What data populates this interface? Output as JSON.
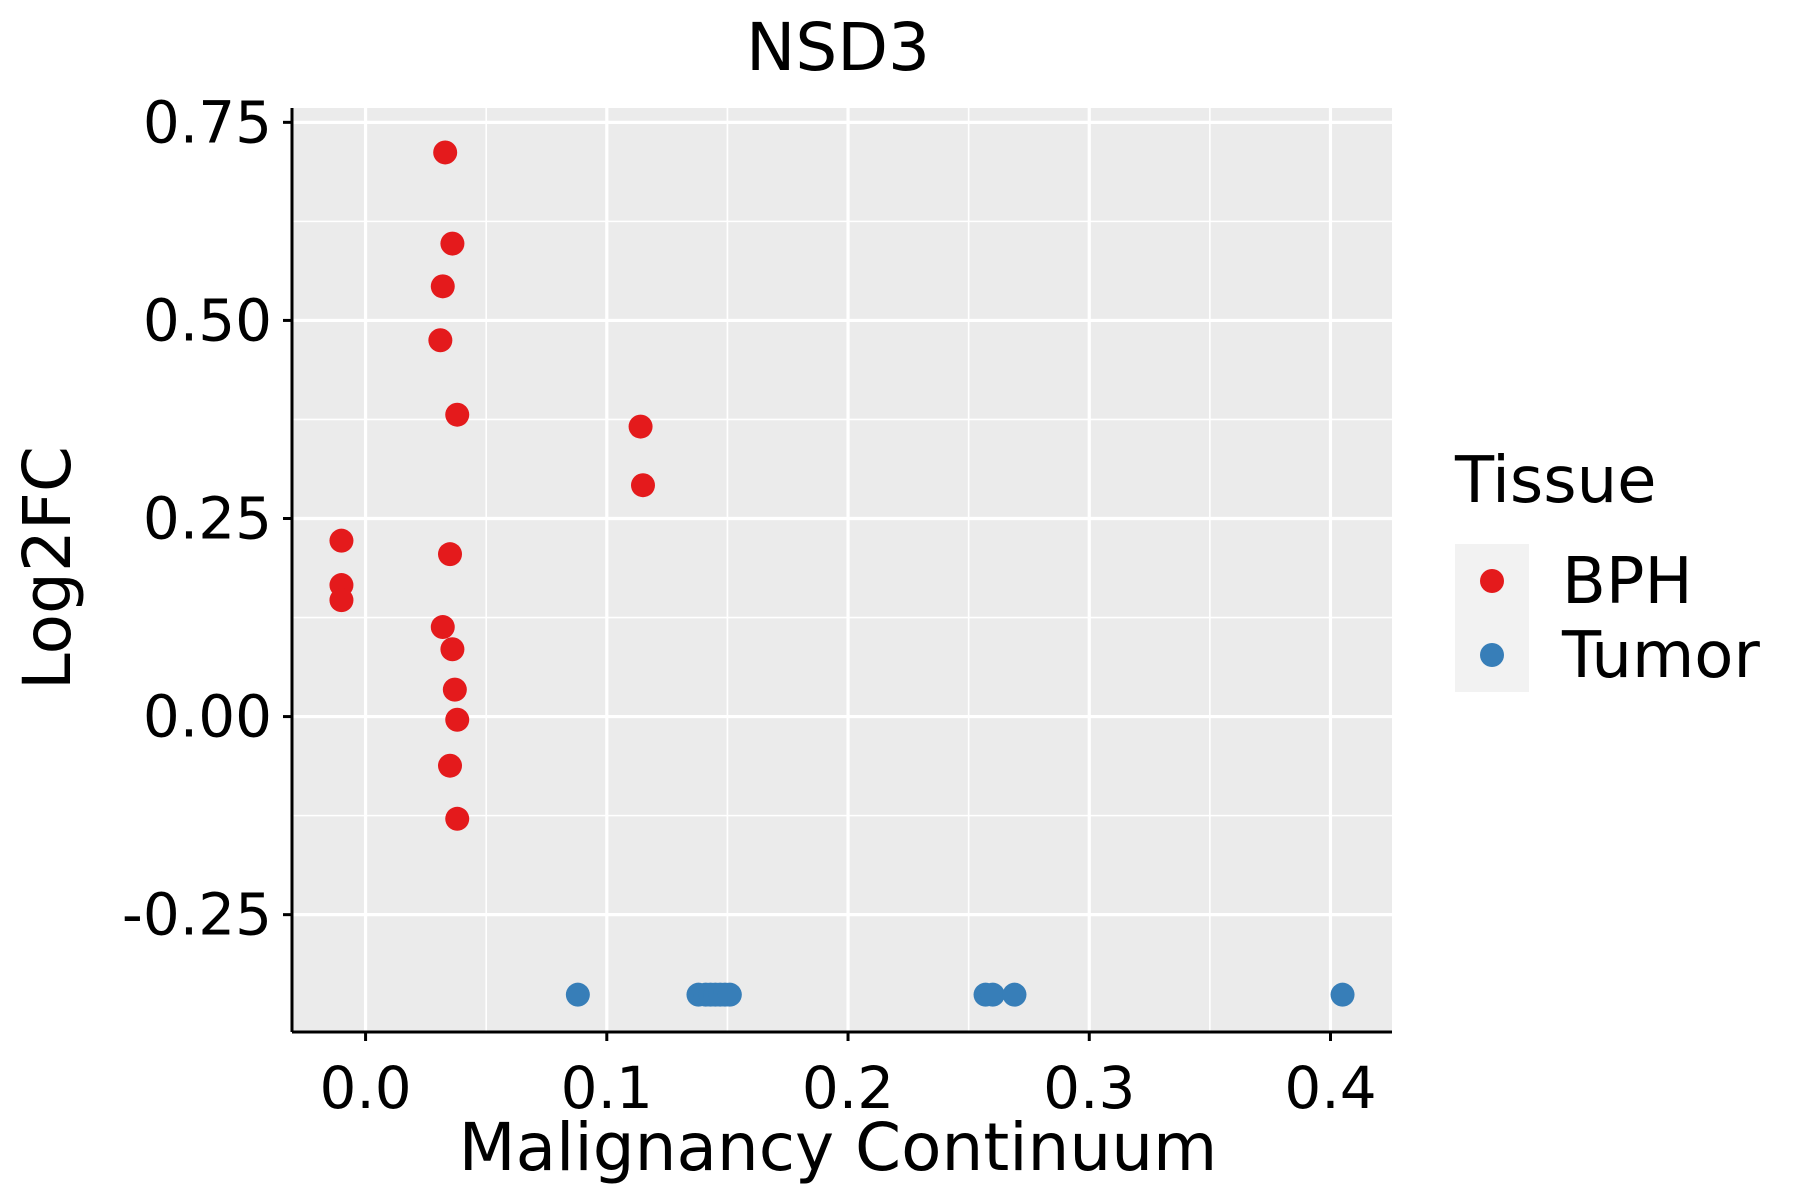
{
  "chart_data": {
    "type": "scatter",
    "title": "NSD3",
    "xlabel": "Malignancy Continuum",
    "ylabel": "Log2FC",
    "xlim": [
      -0.0305,
      0.4255
    ],
    "ylim": [
      -0.3981,
      0.7681
    ],
    "x_ticks": [
      0.0,
      0.1,
      0.2,
      0.3,
      0.4
    ],
    "x_tick_labels": [
      "0.0",
      "0.1",
      "0.2",
      "0.3",
      "0.4"
    ],
    "y_ticks": [
      -0.25,
      0.0,
      0.25,
      0.5,
      0.75
    ],
    "y_tick_labels": [
      "-0.25",
      "0.00",
      "0.25",
      "0.50",
      "0.75"
    ],
    "x_minor": [
      0.05,
      0.15,
      0.25,
      0.35
    ],
    "y_minor": [
      -0.125,
      0.125,
      0.375,
      0.625
    ],
    "grid": true,
    "background": "#EBEBEB",
    "legend": {
      "title": "Tissue",
      "position": "right"
    },
    "series": [
      {
        "name": "BPH",
        "color": "#E41A1C",
        "points": [
          {
            "x": 0.033,
            "y": 0.712
          },
          {
            "x": 0.036,
            "y": 0.597
          },
          {
            "x": 0.032,
            "y": 0.543
          },
          {
            "x": 0.031,
            "y": 0.475
          },
          {
            "x": 0.038,
            "y": 0.381
          },
          {
            "x": 0.114,
            "y": 0.366
          },
          {
            "x": 0.115,
            "y": 0.292
          },
          {
            "x": -0.01,
            "y": 0.222
          },
          {
            "x": 0.035,
            "y": 0.205
          },
          {
            "x": -0.01,
            "y": 0.166
          },
          {
            "x": -0.01,
            "y": 0.147
          },
          {
            "x": 0.032,
            "y": 0.113
          },
          {
            "x": 0.036,
            "y": 0.085
          },
          {
            "x": 0.037,
            "y": 0.034
          },
          {
            "x": 0.038,
            "y": -0.004
          },
          {
            "x": 0.035,
            "y": -0.062
          },
          {
            "x": 0.038,
            "y": -0.129
          }
        ]
      },
      {
        "name": "Tumor",
        "color": "#377EB8",
        "points": [
          {
            "x": 0.088,
            "y": -0.351
          },
          {
            "x": 0.138,
            "y": -0.351
          },
          {
            "x": 0.141,
            "y": -0.351
          },
          {
            "x": 0.143,
            "y": -0.351
          },
          {
            "x": 0.145,
            "y": -0.351
          },
          {
            "x": 0.147,
            "y": -0.351
          },
          {
            "x": 0.149,
            "y": -0.351
          },
          {
            "x": 0.151,
            "y": -0.351
          },
          {
            "x": 0.257,
            "y": -0.351
          },
          {
            "x": 0.26,
            "y": -0.351
          },
          {
            "x": 0.269,
            "y": -0.351
          },
          {
            "x": 0.405,
            "y": -0.351
          }
        ]
      }
    ]
  }
}
